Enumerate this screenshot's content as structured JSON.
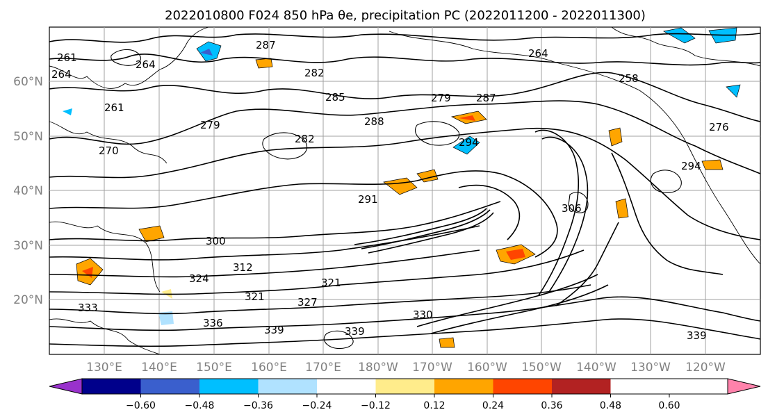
{
  "title": "2022010800 F024 850 hPa θe, precipitation PC (2022011200 - 2022011300)",
  "map": {
    "lat_labels": [
      "60°N",
      "50°N",
      "40°N",
      "30°N",
      "20°N"
    ],
    "lon_labels": [
      "130°E",
      "140°E",
      "150°E",
      "160°E",
      "170°E",
      "180°W",
      "170°W",
      "160°W",
      "150°W",
      "140°W",
      "130°W",
      "120°W"
    ],
    "contour_labels": [
      "261",
      "264",
      "264",
      "287",
      "282",
      "285",
      "279",
      "287",
      "264",
      "258",
      "282",
      "288",
      "294",
      "279",
      "261",
      "270",
      "276",
      "294",
      "291",
      "300",
      "306",
      "312",
      "324",
      "321",
      "321",
      "327",
      "330",
      "339",
      "333",
      "339",
      "336",
      "339"
    ]
  },
  "colorbar": {
    "tick_labels": [
      "−0.60",
      "−0.48",
      "−0.36",
      "−0.24",
      "−0.12",
      "0.12",
      "0.24",
      "0.36",
      "0.48",
      "0.60"
    ],
    "colors": [
      "#9932cc",
      "#00008b",
      "#3a5fcd",
      "#00bfff",
      "#b0e2ff",
      "#ffffff",
      "#ffec8b",
      "#ffa500",
      "#ff4500",
      "#b22222",
      "#ff82ab"
    ]
  }
}
